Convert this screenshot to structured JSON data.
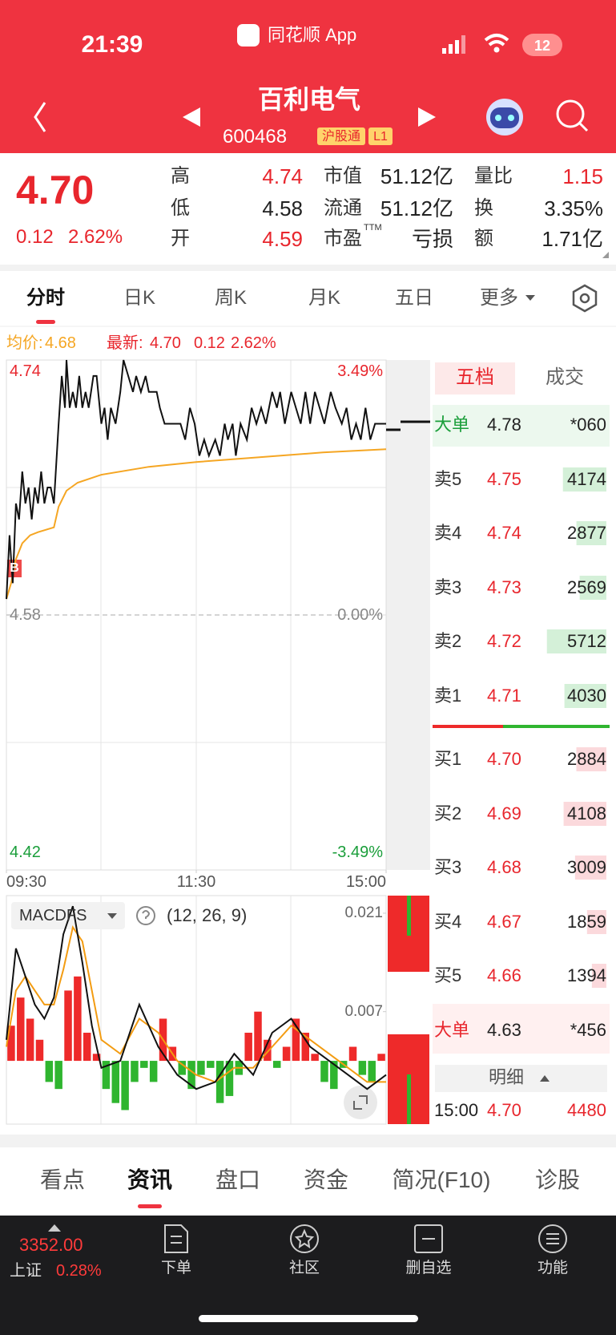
{
  "status_bar": {
    "time": "21:39",
    "app": "同花顺 App",
    "battery": "12"
  },
  "header": {
    "title": "百利电气",
    "code": "600468",
    "badges": [
      "沪股通",
      "L1"
    ]
  },
  "quote": {
    "price": "4.70",
    "change": "0.12",
    "change_pct": "2.62%",
    "stats": [
      [
        {
          "label": "高",
          "value": "4.74"
        },
        {
          "label": "市值",
          "value": "51.12亿"
        },
        {
          "label": "量比",
          "value": "1.15"
        }
      ],
      [
        {
          "label": "低",
          "value": "4.58"
        },
        {
          "label": "流通",
          "value": "51.12亿"
        },
        {
          "label": "换",
          "value": "3.35%"
        }
      ],
      [
        {
          "label": "开",
          "value": "4.59"
        },
        {
          "label": "市盈",
          "sup": "TTM",
          "value": "亏损"
        },
        {
          "label": "额",
          "value": "1.71亿"
        }
      ]
    ]
  },
  "chart_tabs": [
    "分时",
    "日K",
    "周K",
    "月K",
    "五日",
    "更多"
  ],
  "info": {
    "avg_label": "均价:",
    "avg": "4.68",
    "last_label": "最新:",
    "last": "4.70",
    "change": "0.12",
    "change_pct": "2.62%"
  },
  "intraday": {
    "marker": "B",
    "xlim": [
      0,
      240
    ],
    "ylim": [
      4.42,
      4.74
    ],
    "yticks": [
      {
        "value": 4.74,
        "label": "4.74"
      },
      {
        "value": 4.58,
        "label": "4.58"
      },
      {
        "value": 4.42,
        "label": "4.42"
      }
    ],
    "y2lim": [
      -3.49,
      3.49
    ],
    "y2ticks": [
      {
        "value": 3.49,
        "label": "3.49%"
      },
      {
        "value": 0,
        "label": "0.00%"
      },
      {
        "value": -3.49,
        "label": "-3.49%"
      }
    ],
    "xticks": [
      {
        "value": 0,
        "label": "09:30"
      },
      {
        "value": 120,
        "label": "11:30"
      },
      {
        "value": 240,
        "label": "15:00"
      }
    ],
    "price": {
      "color": "#111111",
      "x": [
        0,
        2,
        4,
        6,
        8,
        10,
        12,
        14,
        16,
        18,
        20,
        22,
        24,
        26,
        28,
        30,
        33,
        35,
        37,
        38,
        40,
        42,
        44,
        46,
        48,
        50,
        52,
        55,
        57,
        60,
        62,
        64,
        66,
        69,
        72,
        74,
        77,
        80,
        82,
        85,
        88,
        90,
        95,
        97,
        100,
        110,
        113,
        116,
        119,
        122,
        125,
        128,
        132,
        135,
        138,
        140,
        143,
        145,
        148,
        152,
        155,
        158,
        161,
        164,
        168,
        171,
        173,
        176,
        180,
        183,
        186,
        189,
        192,
        195,
        198,
        201,
        205,
        208,
        212,
        215,
        218,
        221,
        224,
        227,
        230,
        233,
        236,
        240
      ],
      "values": [
        4.59,
        4.63,
        4.6,
        4.65,
        4.64,
        4.67,
        4.65,
        4.66,
        4.64,
        4.66,
        4.65,
        4.67,
        4.65,
        4.66,
        4.66,
        4.65,
        4.7,
        4.73,
        4.71,
        4.74,
        4.71,
        4.72,
        4.71,
        4.73,
        4.71,
        4.72,
        4.71,
        4.73,
        4.73,
        4.7,
        4.71,
        4.69,
        4.71,
        4.7,
        4.72,
        4.74,
        4.73,
        4.72,
        4.73,
        4.72,
        4.73,
        4.72,
        4.72,
        4.71,
        4.7,
        4.7,
        4.69,
        4.71,
        4.7,
        4.68,
        4.69,
        4.68,
        4.69,
        4.68,
        4.7,
        4.69,
        4.7,
        4.68,
        4.7,
        4.69,
        4.71,
        4.7,
        4.71,
        4.7,
        4.72,
        4.71,
        4.72,
        4.7,
        4.72,
        4.71,
        4.7,
        4.72,
        4.7,
        4.72,
        4.71,
        4.7,
        4.72,
        4.71,
        4.7,
        4.71,
        4.69,
        4.7,
        4.69,
        4.71,
        4.69,
        4.7,
        4.7,
        4.7
      ]
    },
    "avg": {
      "color": "#f5a623",
      "x": [
        0,
        3,
        6,
        10,
        15,
        20,
        30,
        33,
        38,
        45,
        60,
        90,
        120,
        160,
        200,
        240
      ],
      "values": [
        4.59,
        4.6,
        4.615,
        4.625,
        4.63,
        4.632,
        4.635,
        4.648,
        4.658,
        4.663,
        4.668,
        4.673,
        4.676,
        4.679,
        4.682,
        4.684
      ]
    }
  },
  "macd": {
    "name": "MACDFS",
    "params": "(12, 26, 9)",
    "xlim": [
      0,
      240
    ],
    "ylim": [
      -0.009,
      0.0235
    ],
    "yticks": [
      0.021,
      0.007
    ],
    "hist": {
      "up_color": "#ee2a2a",
      "down_color": "#2fb52f",
      "x": [
        3,
        9,
        15,
        21,
        27,
        33,
        39,
        45,
        51,
        57,
        63,
        69,
        75,
        81,
        87,
        93,
        99,
        105,
        111,
        117,
        123,
        129,
        135,
        141,
        147,
        153,
        159,
        165,
        171,
        177,
        183,
        189,
        195,
        201,
        207,
        213,
        219,
        225,
        231,
        237
      ],
      "values": [
        0.005,
        0.009,
        0.006,
        0.003,
        -0.003,
        -0.004,
        0.01,
        0.012,
        0.004,
        0.001,
        -0.004,
        -0.006,
        -0.007,
        -0.003,
        -0.001,
        -0.003,
        0.006,
        0.002,
        -0.002,
        -0.004,
        -0.002,
        -0.001,
        -0.006,
        -0.005,
        -0.002,
        0.004,
        0.007,
        0.003,
        -0.001,
        0.002,
        0.006,
        0.004,
        0.001,
        -0.003,
        -0.004,
        -0.001,
        0.002,
        -0.002,
        -0.003,
        0.001
      ]
    },
    "x": [
      0,
      6,
      12,
      18,
      24,
      30,
      36,
      42,
      48,
      54,
      60,
      72,
      84,
      96,
      108,
      120,
      132,
      144,
      156,
      168,
      180,
      192,
      204,
      216,
      228,
      240
    ],
    "dif": {
      "color": "#111111",
      "values": [
        0.003,
        0.016,
        0.012,
        0.008,
        0.006,
        0.009,
        0.018,
        0.022,
        0.014,
        0.005,
        -0.001,
        0,
        0.008,
        0.002,
        -0.002,
        -0.004,
        -0.003,
        0.001,
        -0.002,
        0.004,
        0.006,
        0.002,
        0,
        -0.002,
        -0.004,
        -0.002
      ]
    },
    "dea": {
      "color": "#f39c12",
      "values": [
        0.002,
        0.01,
        0.012,
        0.01,
        0.008,
        0.008,
        0.013,
        0.019,
        0.017,
        0.01,
        0.003,
        0.001,
        0.006,
        0.004,
        0,
        -0.002,
        -0.003,
        -0.001,
        -0.001,
        0.002,
        0.005,
        0.003,
        0.001,
        -0.001,
        -0.003,
        -0.003
      ]
    }
  },
  "order_book": {
    "tabs": [
      "五档",
      "成交"
    ],
    "top": {
      "label": "大单",
      "price": "4.78",
      "vol": "*060"
    },
    "asks": [
      {
        "label": "卖5",
        "price": "4.75",
        "vol": 4174
      },
      {
        "label": "卖4",
        "price": "4.74",
        "vol": 2877
      },
      {
        "label": "卖3",
        "price": "4.73",
        "vol": 2569
      },
      {
        "label": "卖2",
        "price": "4.72",
        "vol": 5712
      },
      {
        "label": "卖1",
        "price": "4.71",
        "vol": 4030
      }
    ],
    "bids": [
      {
        "label": "买1",
        "price": "4.70",
        "vol": 2884
      },
      {
        "label": "买2",
        "price": "4.69",
        "vol": 4108
      },
      {
        "label": "买3",
        "price": "4.68",
        "vol": 3009
      },
      {
        "label": "买4",
        "price": "4.67",
        "vol": 1859
      },
      {
        "label": "买5",
        "price": "4.66",
        "vol": 1394
      }
    ],
    "bottom": {
      "label": "大单",
      "price": "4.63",
      "vol": "*456"
    },
    "detail": "明细",
    "trade": {
      "time": "15:00",
      "price": "4.70",
      "vol": "4480"
    }
  },
  "bottom_tabs": [
    "看点",
    "资讯",
    "盘口",
    "资金",
    "简况(F10)",
    "诊股"
  ],
  "nav": {
    "index_value": "3352.00",
    "index_name": "上证",
    "index_change": "0.28%",
    "items": [
      "下单",
      "社区",
      "删自选",
      "功能"
    ]
  }
}
